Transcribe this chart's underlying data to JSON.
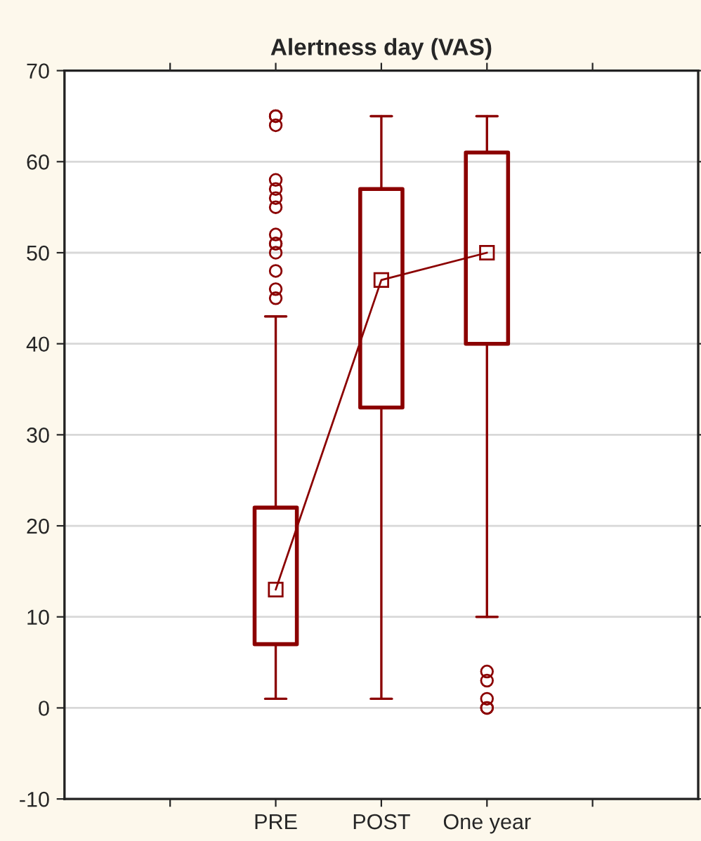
{
  "chart_data": {
    "type": "box",
    "title": "Alertness day (VAS)",
    "categories": [
      null,
      "PRE",
      "POST",
      "One year",
      null
    ],
    "boxes": [
      null,
      {
        "low": 1,
        "q1": 7,
        "median": 13,
        "q3": 22,
        "high": 43,
        "outliers": [
          65,
          65,
          64,
          58,
          57,
          56,
          55,
          52,
          51,
          51,
          50,
          48,
          46,
          45
        ]
      },
      {
        "low": 1,
        "q1": 33,
        "median": 47,
        "q3": 57,
        "high": 65
      },
      {
        "low": 10,
        "q1": 40,
        "median": 50,
        "q3": 61,
        "high": 65,
        "outliers": [
          4,
          3,
          1,
          0,
          0
        ]
      },
      null
    ],
    "series": [
      {
        "type": "line",
        "color": "#8b0000",
        "values": [
          null,
          13,
          47,
          50,
          null
        ],
        "line_style": "solid"
      }
    ],
    "color": "#8b0000",
    "ylim": [
      -10,
      70
    ],
    "yticks": [
      -10,
      0,
      10,
      20,
      30,
      40,
      50,
      60,
      70
    ],
    "grid": "y",
    "legend": false
  }
}
